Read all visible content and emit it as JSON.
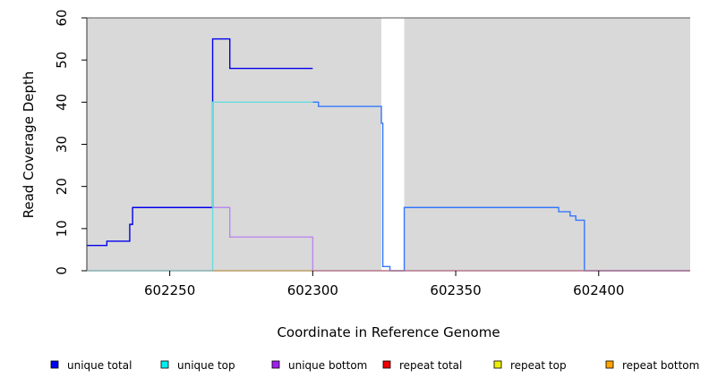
{
  "chart_data": {
    "type": "line",
    "step": true,
    "xlabel": "Coordinate in Reference Genome",
    "ylabel": "Read Coverage Depth",
    "xlim": [
      602221,
      602432
    ],
    "ylim": [
      0,
      60
    ],
    "x_ticks": [
      602250,
      602300,
      602350,
      602400
    ],
    "y_ticks": [
      0,
      10,
      20,
      30,
      40,
      50,
      60
    ],
    "shaded_regions": [
      [
        602221,
        602324
      ],
      [
        602332,
        602432
      ]
    ],
    "background_color": "#d9d9d9",
    "series": [
      {
        "name": "unique total",
        "color": "#0000ee",
        "points": [
          [
            602221,
            6
          ],
          [
            602228,
            7
          ],
          [
            602236,
            11
          ],
          [
            602237,
            15
          ],
          [
            602262,
            15
          ],
          [
            602265,
            55
          ],
          [
            602271,
            48
          ],
          [
            602300,
            48
          ]
        ]
      },
      {
        "name": "unique total",
        "color": "#3377ff",
        "points": [
          [
            602300,
            40
          ],
          [
            602302,
            39
          ],
          [
            602323,
            39
          ],
          [
            602324,
            35
          ],
          [
            602324.5,
            1
          ],
          [
            602327,
            0
          ],
          [
            602332,
            15
          ],
          [
            602373,
            15
          ],
          [
            602386,
            14
          ],
          [
            602390,
            13
          ],
          [
            602392,
            12
          ],
          [
            602395,
            0
          ],
          [
            602432,
            0
          ]
        ]
      },
      {
        "name": "unique top",
        "color": "#66dddd",
        "points": [
          [
            602221,
            0
          ],
          [
            602265,
            40
          ],
          [
            602300,
            40
          ]
        ]
      },
      {
        "name": "unique bottom",
        "color": "#bb88ee",
        "points": [
          [
            602265,
            15
          ],
          [
            602271,
            8
          ],
          [
            602300,
            8
          ],
          [
            602300,
            0
          ]
        ]
      },
      {
        "name": "repeat total",
        "color": "#ee3366",
        "points": [
          [
            602300,
            0
          ],
          [
            602432,
            0
          ]
        ]
      },
      {
        "name": "repeat bottom",
        "color": "#ffa500",
        "points": [
          [
            602265,
            0
          ],
          [
            602300,
            0
          ]
        ]
      }
    ],
    "legend": [
      {
        "label": "unique total",
        "color": "#0000ee"
      },
      {
        "label": "unique top",
        "color": "#00eeee"
      },
      {
        "label": "unique bottom",
        "color": "#a020f0"
      },
      {
        "label": "repeat total",
        "color": "#ee0000"
      },
      {
        "label": "repeat top",
        "color": "#eeee00"
      },
      {
        "label": "repeat bottom",
        "color": "#ffa500"
      }
    ],
    "legend_position": "bottom"
  }
}
